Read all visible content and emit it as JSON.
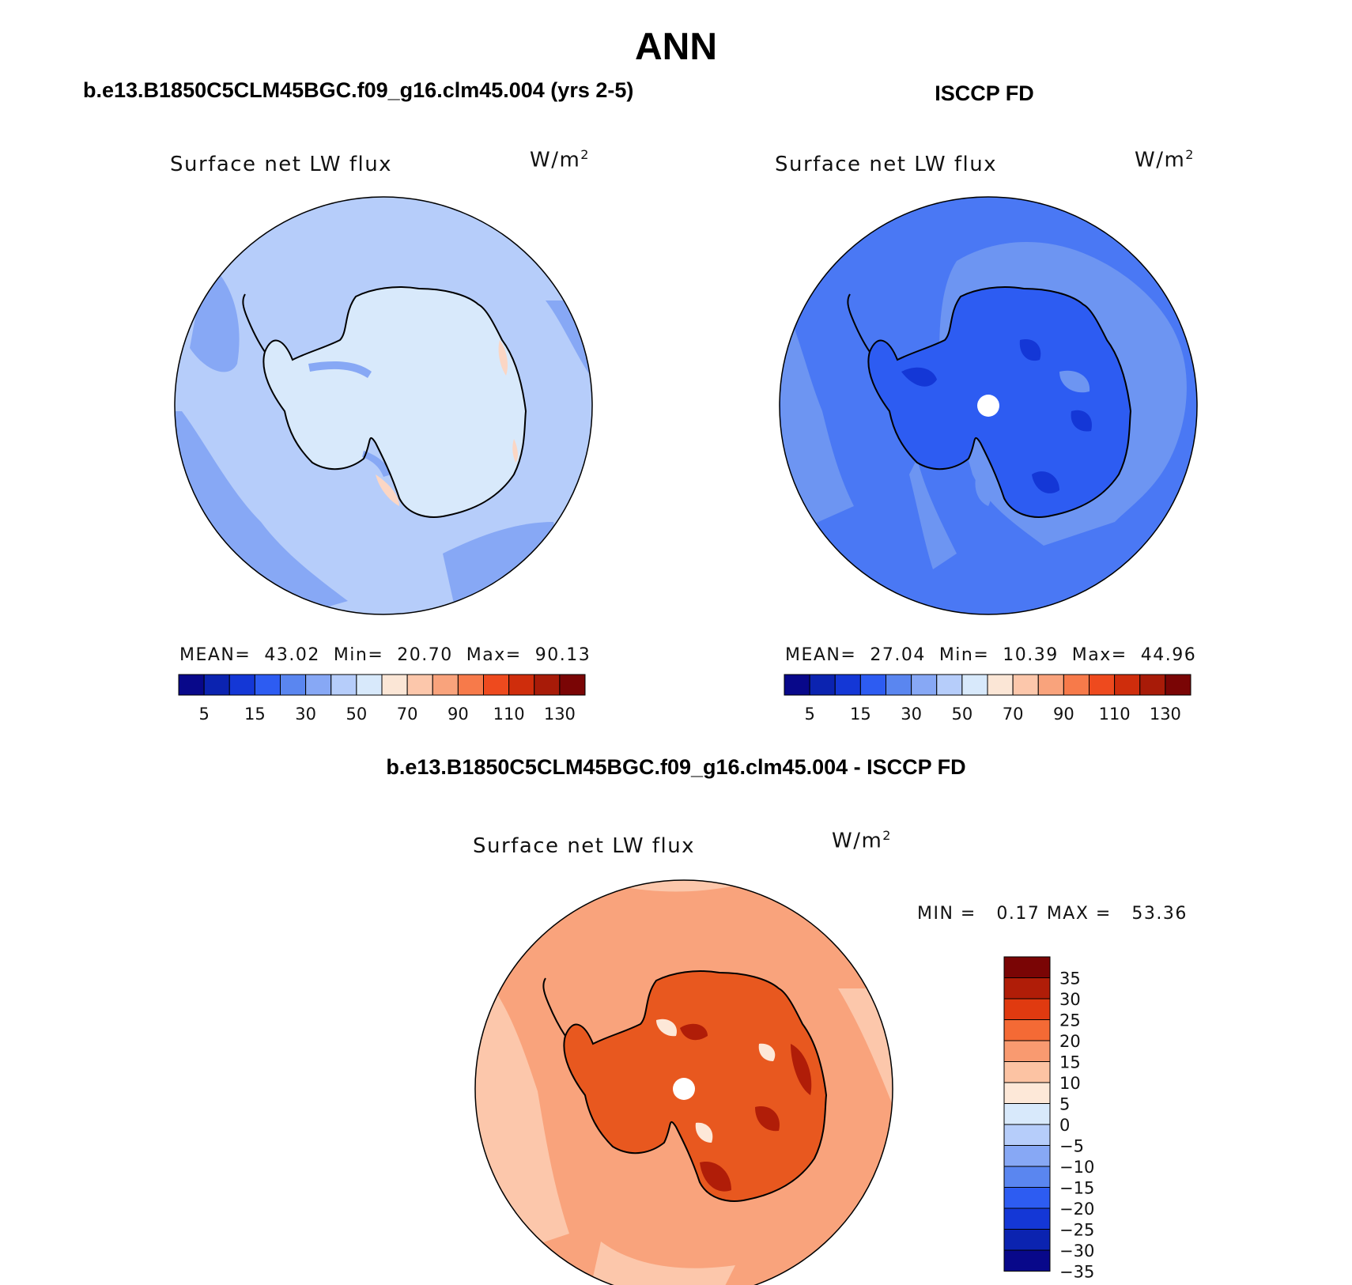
{
  "title": "ANN",
  "left_panel": {
    "case": "b.e13.B1850C5CLM45BGC.f09_g16.clm45.004 (yrs 2-5)",
    "variable": "Surface net LW flux",
    "units": "W/m",
    "units_sup": "2",
    "stats": {
      "mean_label": "MEAN=",
      "mean": "43.02",
      "min_label": "Min=",
      "min": "20.70",
      "max_label": "Max=",
      "max": "90.13"
    }
  },
  "right_panel": {
    "case": "ISCCP FD",
    "variable": "Surface net LW flux",
    "units": "W/m",
    "units_sup": "2",
    "stats": {
      "mean_label": "MEAN=",
      "mean": "27.04",
      "min_label": "Min=",
      "min": "10.39",
      "max_label": "Max=",
      "max": "44.96"
    }
  },
  "diff_panel": {
    "case": "b.e13.B1850C5CLM45BGC.f09_g16.clm45.004 - ISCCP FD",
    "variable": "Surface net LW flux",
    "units": "W/m",
    "units_sup": "2",
    "min_label": "MIN =",
    "min": "0.17",
    "max_label": "MAX =",
    "max": "53.36"
  },
  "abs_colorbar": {
    "colors": [
      "#08088a",
      "#0b23b0",
      "#1437d6",
      "#2d5cf2",
      "#5a86f0",
      "#87a8f5",
      "#b6cdfa",
      "#d8e9fb",
      "#fbe6d6",
      "#fcc7ab",
      "#f9a37c",
      "#f77a4a",
      "#ee4a1e",
      "#cf2d0c",
      "#a81b08",
      "#7a0505"
    ],
    "labels": [
      "5",
      "15",
      "30",
      "50",
      "70",
      "90",
      "110",
      "130"
    ]
  },
  "diff_colorbar": {
    "colors": [
      "#7a0505",
      "#b01d08",
      "#e03a10",
      "#f46a35",
      "#f99a70",
      "#fcc3a3",
      "#fde8d8",
      "#d8e9fb",
      "#b6cdfa",
      "#87a8f5",
      "#5a86f0",
      "#2d5cf2",
      "#1437d6",
      "#0b23b0",
      "#08088a"
    ],
    "labels": [
      "35",
      "30",
      "25",
      "20",
      "15",
      "10",
      "5",
      "0",
      "−5",
      "−10",
      "−15",
      "−20",
      "−25",
      "−30",
      "−35"
    ]
  },
  "map_colors": {
    "left_ocean": "#b6cdfa",
    "left_ocean_mid": "#87a8f5",
    "left_land": "#d8e9fb",
    "left_warm": "#fbd6c4",
    "right_ocean": "#4a78f4",
    "right_ocean_light": "#6d95f2",
    "right_land": "#2d5cf2",
    "right_land_dark": "#1437d6",
    "diff_ocean": "#f9a37c",
    "diff_ocean_light": "#fcc7ab",
    "diff_land": "#e8581f",
    "diff_land_dark": "#b01d08",
    "diff_land_light": "#fde8d8"
  }
}
